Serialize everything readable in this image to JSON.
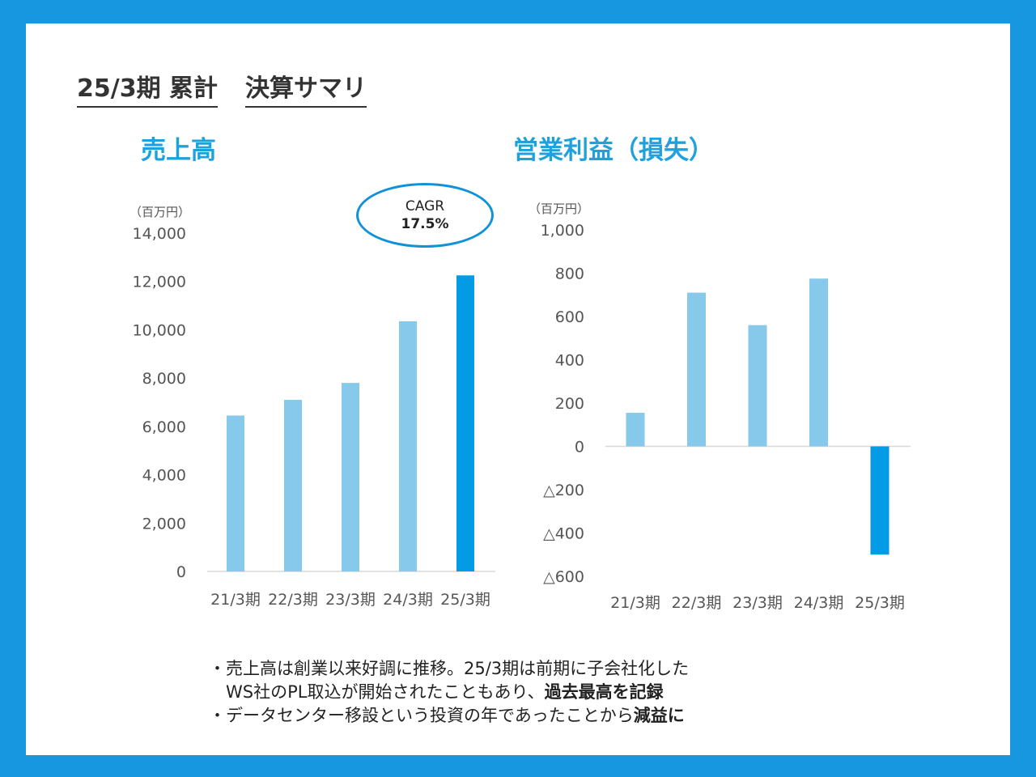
{
  "title": {
    "part1": "25/3期 累計",
    "part2": "決算サマリ"
  },
  "colors": {
    "accent": "#1fa2dc",
    "bar_light": "#86c9ea",
    "bar_dark": "#039be5",
    "frame": "#1797e0"
  },
  "cagr": {
    "label": "CAGR",
    "value": "17.5%"
  },
  "chart_data": [
    {
      "type": "bar",
      "title": "売上高",
      "unit": "（百万円）",
      "categories": [
        "21/3期",
        "22/3期",
        "23/3期",
        "24/3期",
        "25/3期"
      ],
      "values": [
        6450,
        7100,
        7800,
        10350,
        12250
      ],
      "ylim": [
        0,
        14000
      ],
      "yticks": [
        0,
        2000,
        4000,
        6000,
        8000,
        10000,
        12000,
        14000
      ],
      "ytick_labels": [
        "0",
        "2,000",
        "4,000",
        "6,000",
        "8,000",
        "10,000",
        "12,000",
        "14,000"
      ],
      "highlight_index": 4
    },
    {
      "type": "bar",
      "title": "営業利益（損失）",
      "unit": "（百万円）",
      "categories": [
        "21/3期",
        "22/3期",
        "23/3期",
        "24/3期",
        "25/3期"
      ],
      "values": [
        155,
        710,
        560,
        775,
        -500
      ],
      "ylim": [
        -600,
        1000
      ],
      "yticks": [
        -600,
        -400,
        -200,
        0,
        200,
        400,
        600,
        800,
        1000
      ],
      "ytick_labels": [
        "△600",
        "△400",
        "△200",
        "0",
        "200",
        "400",
        "600",
        "800",
        "1,000"
      ],
      "highlight_index": 4
    }
  ],
  "notes": {
    "line1": "・売上高は創業以来好調に推移。25/3期は前期に子会社化した",
    "line2_plain": "　WS社のPL取込が開始されたこともあり、",
    "line2_bold": "過去最高を記録",
    "line3_plain": "・データセンター移設という投資の年であったことから",
    "line3_bold": "減益に"
  }
}
